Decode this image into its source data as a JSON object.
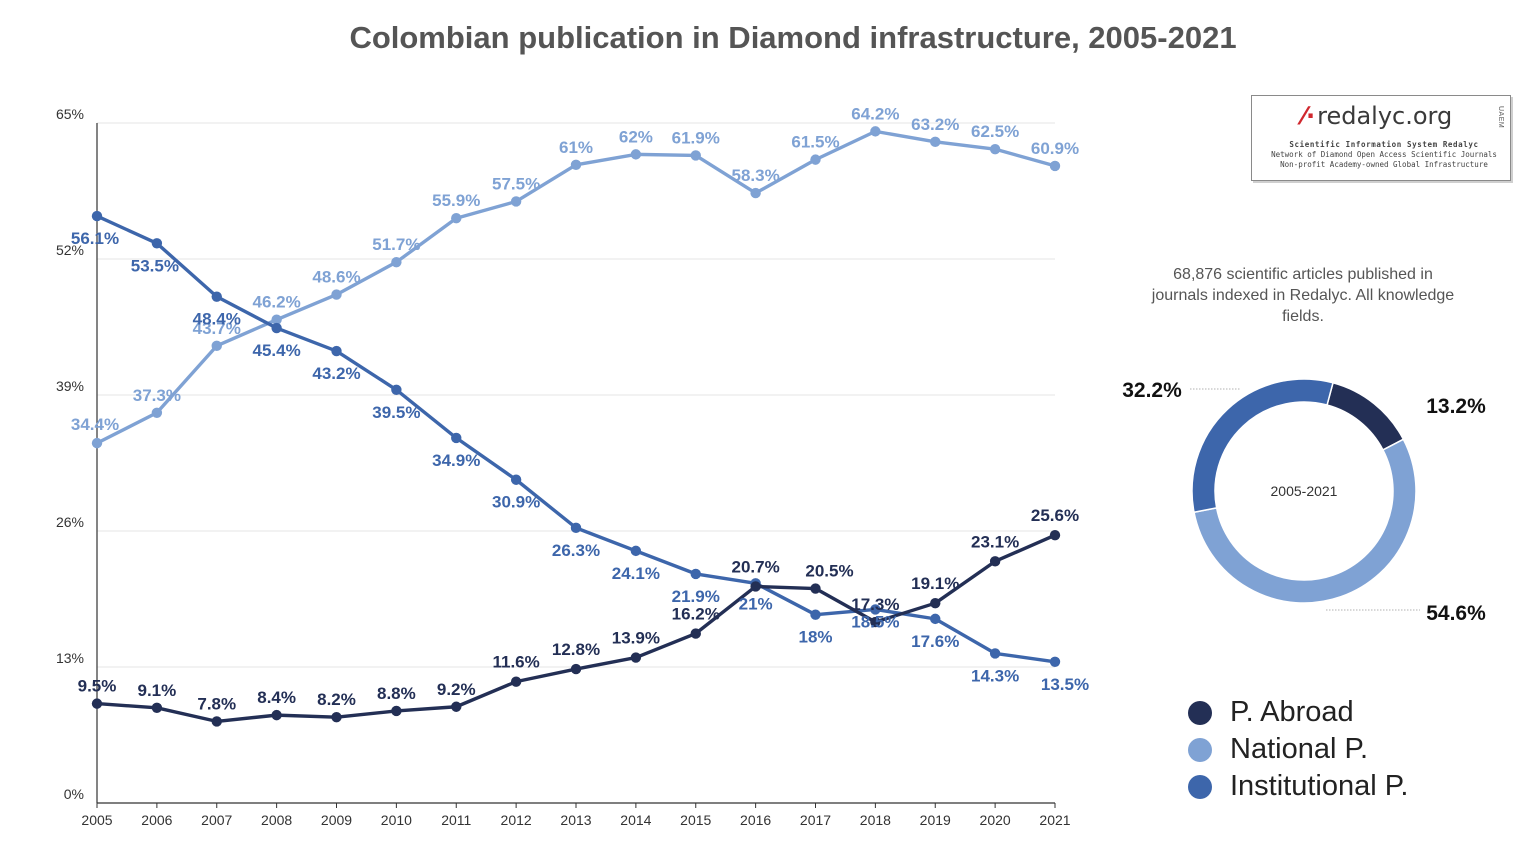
{
  "title": "Colombian publication in Diamond infrastructure, 2005-2021",
  "logo": {
    "name": "redalyc.org",
    "side_text": "UAEM",
    "line1": "Scientific Information System Redalyc",
    "line2": "Network of Diamond Open Access Scientific Journals",
    "line3": "Non-profit Academy-owned Global Infrastructure"
  },
  "donut_note": "68,876 scientific articles published in journals indexed in Redalyc. All knowledge fields.",
  "colors": {
    "abroad": "#232f55",
    "national": "#7fa2d4",
    "institutional": "#3d66ab",
    "grid": "#e6e6e6",
    "axis": "#333333"
  },
  "legend": [
    {
      "label": "P. Abroad",
      "color": "#232f55"
    },
    {
      "label": "National P.",
      "color": "#7fa2d4"
    },
    {
      "label": "Institutional P.",
      "color": "#3d66ab"
    }
  ],
  "chart_data": [
    {
      "type": "line",
      "title": "Colombian publication in Diamond infrastructure, 2005-2021",
      "x": [
        "2005",
        "2006",
        "2007",
        "2008",
        "2009",
        "2010",
        "2011",
        "2012",
        "2013",
        "2014",
        "2015",
        "2016",
        "2017",
        "2018",
        "2019",
        "2020",
        "2021"
      ],
      "ylim": [
        0,
        65
      ],
      "yticks": [
        "0%",
        "13%",
        "26%",
        "39%",
        "52%",
        "65%"
      ],
      "grid": true,
      "series": [
        {
          "name": "P. Abroad",
          "color": "#232f55",
          "values": [
            9.5,
            9.1,
            7.8,
            8.4,
            8.2,
            8.8,
            9.2,
            11.6,
            12.8,
            13.9,
            16.2,
            20.7,
            20.5,
            17.3,
            19.1,
            23.1,
            25.6
          ],
          "labels": [
            "9.5%",
            "9.1%",
            "7.8%",
            "8.4%",
            "8.2%",
            "8.8%",
            "9.2%",
            "11.6%",
            "12.8%",
            "13.9%",
            "16.2%",
            "20.7%",
            "20.5%",
            "17.3%",
            "19.1%",
            "23.1%",
            "25.6%"
          ]
        },
        {
          "name": "National P.",
          "color": "#7fa2d4",
          "values": [
            34.4,
            37.3,
            43.7,
            46.2,
            48.6,
            51.7,
            55.9,
            57.5,
            61,
            62,
            61.9,
            58.3,
            61.5,
            64.2,
            63.2,
            62.5,
            60.9
          ],
          "labels": [
            "34.4%",
            "37.3%",
            "43.7%",
            "46.2%",
            "48.6%",
            "51.7%",
            "55.9%",
            "57.5%",
            "61%",
            "62%",
            "61.9%",
            "58.3%",
            "61.5%",
            "64.2%",
            "63.2%",
            "62.5%",
            "60.9%"
          ]
        },
        {
          "name": "Institutional P.",
          "color": "#3d66ab",
          "values": [
            56.1,
            53.5,
            48.4,
            45.4,
            43.2,
            39.5,
            34.9,
            30.9,
            26.3,
            24.1,
            21.9,
            21,
            18,
            18.5,
            17.6,
            14.3,
            13.5
          ],
          "labels": [
            "56.1%",
            "53.5%",
            "48.4%",
            "45.4%",
            "43.2%",
            "39.5%",
            "34.9%",
            "30.9%",
            "26.3%",
            "24.1%",
            "21.9%",
            "21%",
            "18%",
            "18.5%",
            "17.6%",
            "14.3%",
            "13.5%"
          ]
        }
      ]
    },
    {
      "type": "pie",
      "center_label": "2005-2021",
      "slices": [
        {
          "name": "P. Abroad",
          "value": 13.2,
          "label": "13.2%",
          "color": "#232f55"
        },
        {
          "name": "National P.",
          "value": 54.6,
          "label": "54.6%",
          "color": "#7fa2d4"
        },
        {
          "name": "Institutional P.",
          "value": 32.2,
          "label": "32.2%",
          "color": "#3d66ab"
        }
      ]
    }
  ]
}
